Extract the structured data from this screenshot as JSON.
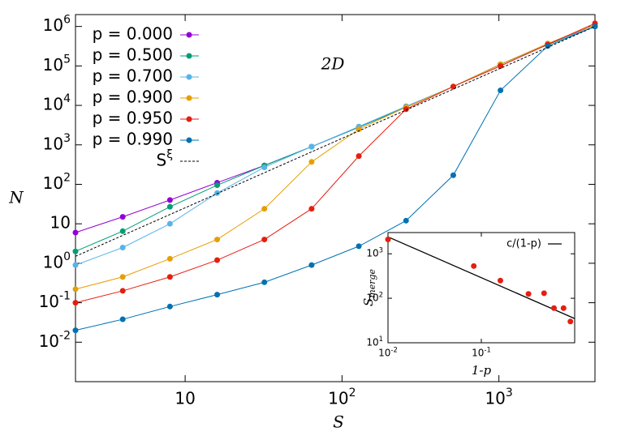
{
  "chart_data": [
    {
      "type": "line",
      "xlabel": "S",
      "ylabel": "N",
      "annotation": "2D",
      "log_x": true,
      "log_y": true,
      "legend": "top-left",
      "x": [
        2,
        4,
        8,
        16,
        32,
        64,
        128,
        256,
        512,
        1024,
        2048,
        4096
      ],
      "xlim": [
        2,
        4096
      ],
      "ylim": [
        0.001,
        2000000
      ],
      "xticks": [
        {
          "value": 10,
          "label": "10"
        },
        {
          "value": 100,
          "label": "10",
          "exp": "2"
        },
        {
          "value": 1000,
          "label": "10",
          "exp": "3"
        }
      ],
      "yticks": [
        {
          "value": 0.01,
          "label": "10",
          "exp": "-2"
        },
        {
          "value": 0.1,
          "label": "10",
          "exp": "-1"
        },
        {
          "value": 1,
          "label": "10",
          "exp": "0"
        },
        10,
        {
          "value": 100,
          "label": "10",
          "exp": "2"
        },
        {
          "value": 1000,
          "label": "10",
          "exp": "3"
        },
        {
          "value": 10000,
          "label": "10",
          "exp": "4"
        },
        {
          "value": 100000,
          "label": "10",
          "exp": "5"
        },
        {
          "value": 1000000,
          "label": "10",
          "exp": "6"
        }
      ],
      "series": [
        {
          "name": "p = 0.000",
          "color": "#9400d3",
          "values": [
            6,
            15,
            40,
            110,
            300,
            900,
            2800,
            9000,
            30000,
            110000,
            350000,
            1100000
          ]
        },
        {
          "name": "p = 0.500",
          "color": "#009e73",
          "values": [
            2,
            6.5,
            27,
            95,
            300,
            900,
            2800,
            9000,
            30000,
            110000,
            350000,
            1000000
          ]
        },
        {
          "name": "p = 0.700",
          "color": "#56b4e9",
          "values": [
            0.9,
            2.5,
            10,
            60,
            270,
            900,
            2900,
            9500,
            30000,
            110000,
            360000,
            1000000
          ]
        },
        {
          "name": "p = 0.900",
          "color": "#e69f00",
          "values": [
            0.22,
            0.45,
            1.3,
            4,
            24,
            370,
            2500,
            9000,
            30000,
            110000,
            370000,
            1100000
          ]
        },
        {
          "name": "p = 0.950",
          "color": "#e51e10",
          "values": [
            0.1,
            0.2,
            0.45,
            1.2,
            4,
            24,
            520,
            8000,
            30000,
            100000,
            350000,
            1200000
          ]
        },
        {
          "name": "p = 0.990",
          "color": "#0072b2",
          "values": [
            0.02,
            0.038,
            0.08,
            0.16,
            0.33,
            0.9,
            2.7,
            12,
            170,
            24000,
            320000,
            1000000
          ]
        },
        {
          "name": "S",
          "exponent": "ξ",
          "color": "#000000",
          "dashed": true,
          "x": [
            2,
            4096
          ],
          "values": [
            1.5,
            1000000
          ]
        }
      ]
    },
    {
      "type": "scatter",
      "xlabel": "1-p",
      "ylabel": "S",
      "ylabel_sub": "merge",
      "log_x": true,
      "log_y": true,
      "legend": "top-right",
      "xlim": [
        0.01,
        1
      ],
      "ylim": [
        10,
        3000
      ],
      "xticks": [
        {
          "value": 0.01,
          "label": "10",
          "exp": "-2"
        },
        {
          "value": 0.1,
          "label": "10",
          "exp": "-1"
        }
      ],
      "yticks": [
        {
          "value": 10,
          "label": "10",
          "exp": "1"
        },
        {
          "value": 100,
          "label": "10",
          "exp": "2"
        },
        {
          "value": 1000,
          "label": "10",
          "exp": "3"
        }
      ],
      "points": {
        "color": "#e51e10",
        "x": [
          0.01,
          0.083,
          0.16,
          0.32,
          0.47,
          0.6,
          0.76,
          0.9
        ],
        "values": [
          2100,
          530,
          250,
          125,
          130,
          60,
          60,
          30
        ]
      },
      "fit": {
        "name": "c/(1-p)",
        "color": "#000000",
        "x": [
          0.01,
          1
        ],
        "values": [
          2400,
          35
        ]
      }
    }
  ]
}
